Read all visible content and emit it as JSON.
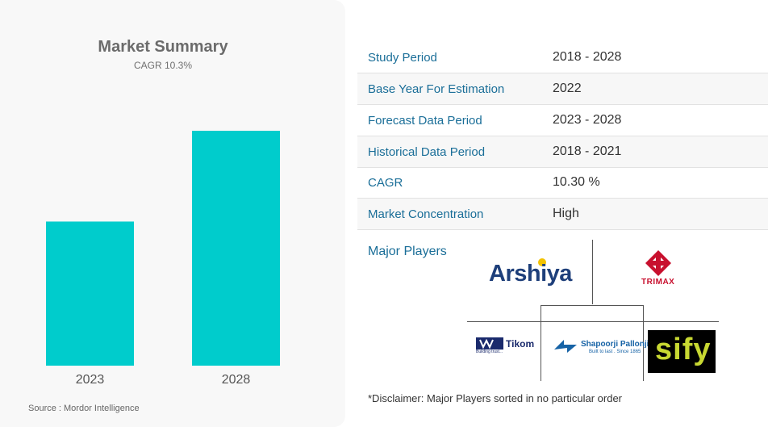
{
  "summary": {
    "title": "Market Summary",
    "subtitle": "CAGR 10.3%",
    "source": "Source : Mordor Intelligence"
  },
  "chart_data": {
    "type": "bar",
    "categories": [
      "2023",
      "2028"
    ],
    "values": [
      1.0,
      1.63
    ],
    "title": "Market Summary",
    "subtitle": "CAGR 10.3%",
    "xlabel": "",
    "ylabel": "",
    "color": "#00cccc",
    "grid": false
  },
  "table": {
    "rows": [
      {
        "label": "Study Period",
        "value": "2018 - 2028"
      },
      {
        "label": "Base Year For Estimation",
        "value": "2022"
      },
      {
        "label": "Forecast Data Period",
        "value": "2023 - 2028"
      },
      {
        "label": "Historical Data Period",
        "value": "2018 - 2021"
      },
      {
        "label": "CAGR",
        "value": "10.30 %"
      },
      {
        "label": "Market Concentration",
        "value": "High"
      }
    ]
  },
  "players": {
    "label": "Major Players",
    "logos": {
      "arshiya": "Arshiya",
      "trimax": "TRIMAX",
      "tikom": "Tikom",
      "tikom_tag": "Building trust...",
      "shapoorji": "Shapoorji Pallonji",
      "shapoorji_tag": "Built to last . Since 1865",
      "sify": "sify"
    },
    "disclaimer": "*Disclaimer: Major Players sorted in no particular order"
  },
  "colors": {
    "accent": "#00cccc",
    "label": "#1a6e98"
  }
}
